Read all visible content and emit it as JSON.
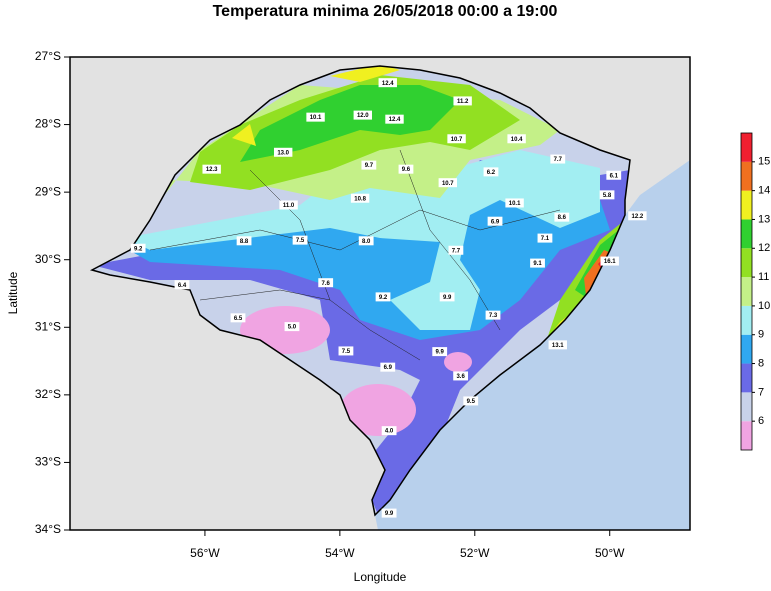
{
  "chart_data": {
    "type": "map",
    "title": "Temperatura minima 26/05/2018 00:00 a 19:00",
    "xlabel": "Longitude",
    "ylabel": "Latitude",
    "xlim": [
      -58,
      -48.81
    ],
    "ylim": [
      -34,
      -27
    ],
    "xticks": [
      {
        "value": -56,
        "label": "56°W"
      },
      {
        "value": -54,
        "label": "54°W"
      },
      {
        "value": -52,
        "label": "52°W"
      },
      {
        "value": -50,
        "label": "50°W"
      }
    ],
    "yticks": [
      {
        "value": -27,
        "label": "27°S"
      },
      {
        "value": -28,
        "label": "28°S"
      },
      {
        "value": -29,
        "label": "29°S"
      },
      {
        "value": -30,
        "label": "30°S"
      },
      {
        "value": -31,
        "label": "31°S"
      },
      {
        "value": -32,
        "label": "32°S"
      },
      {
        "value": -33,
        "label": "33°S"
      },
      {
        "value": -34,
        "label": "34°S"
      }
    ],
    "lon": [
      -53.29,
      -52.18,
      -54.36,
      -53.66,
      -53.19,
      -52.27,
      -51.38,
      -54.84,
      -50.77,
      -55.9,
      -53.57,
      -53.02,
      -51.76,
      -49.94,
      -50.04,
      -52.4,
      -53.7,
      -54.76,
      -51.41,
      -50.71,
      -49.59,
      -51.7,
      -56.99,
      -55.42,
      -54.59,
      -53.61,
      -50.96,
      -52.28,
      -51.07,
      -50.0,
      -56.34,
      -54.21,
      -53.36,
      -52.41,
      -55.51,
      -54.71,
      -51.73,
      -50.77,
      -53.91,
      -52.52,
      -53.29,
      -52.21,
      -52.06,
      -53.27,
      -53.27
    ],
    "lat": [
      -27.38,
      -27.65,
      -27.89,
      -27.86,
      -27.92,
      -28.21,
      -28.21,
      -28.41,
      -28.51,
      -28.66,
      -28.6,
      -28.66,
      -28.7,
      -28.75,
      -29.04,
      -28.86,
      -29.09,
      -29.19,
      -29.16,
      -29.37,
      -29.35,
      -29.43,
      -29.83,
      -29.72,
      -29.71,
      -29.72,
      -29.68,
      -29.86,
      -30.05,
      -30.02,
      -30.37,
      -30.34,
      -30.55,
      -30.55,
      -30.86,
      -30.99,
      -30.82,
      -31.26,
      -31.35,
      -31.36,
      -31.59,
      -31.72,
      -32.09,
      -32.53,
      -33.75
    ],
    "values": [
      12.4,
      11.2,
      10.1,
      12,
      12.4,
      10.7,
      10.4,
      13,
      7.7,
      12.3,
      9.7,
      9.6,
      6.2,
      6.1,
      5.8,
      10.7,
      10.8,
      11,
      10.1,
      8.6,
      12.2,
      6.9,
      9.2,
      8.8,
      7.5,
      8,
      7.1,
      7.7,
      9.1,
      16.1,
      6.4,
      7.6,
      9.2,
      9.9,
      6.5,
      5,
      7.3,
      13.1,
      7.5,
      9.9,
      6.9,
      3.6,
      9.5,
      4,
      9.9
    ],
    "value_labels": [
      "12.4",
      "11.2",
      "10.1",
      "12.0",
      "12.4",
      "10.7",
      "10.4",
      "13.0",
      "7.7",
      "12.3",
      "9.7",
      "9.6",
      "6.2",
      "6.1",
      "5.8",
      "10.7",
      "10.8",
      "11.0",
      "10.1",
      "8.6",
      "12.2",
      "6.9",
      "9.2",
      "8.8",
      "7.5",
      "8.0",
      "7.1",
      "7.7",
      "9.1",
      "16.1",
      "6.4",
      "7.6",
      "9.2",
      "9.9",
      "6.5",
      "5.0",
      "7.3",
      "13.1",
      "7.5",
      "9.9",
      "6.9",
      "3.6",
      "9.5",
      "4.0",
      "9.9"
    ],
    "colorbar": {
      "lim": [
        5,
        16
      ],
      "ticks": [
        6,
        7,
        8,
        9,
        10,
        11,
        12,
        13,
        14,
        15
      ],
      "colors": [
        "#f0a4e2",
        "#c8d2ea",
        "#6a6ae6",
        "#30a8f0",
        "#a2eef2",
        "#c4f088",
        "#92e022",
        "#30d030",
        "#f0f020",
        "#f07020",
        "#f02030"
      ]
    }
  }
}
